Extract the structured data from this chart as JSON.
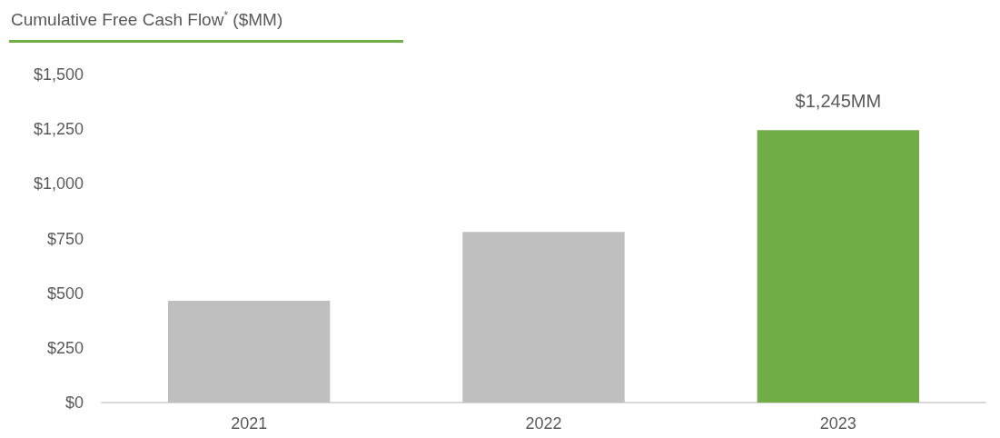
{
  "chart_data": {
    "type": "bar",
    "title": "Cumulative Free Cash Flow$^{*}$ ($MM)",
    "categories": [
      "2021",
      "2022",
      "2023"
    ],
    "values": [
      465,
      780,
      1245
    ],
    "colors": [
      "#bfbfbf",
      "#bfbfbf",
      "#70ad47"
    ],
    "value_labels": [
      null,
      null,
      "$1,245MM"
    ],
    "ylim": [
      0,
      1500
    ],
    "yticks": [
      {
        "value": 0,
        "label": "$0"
      },
      {
        "value": 250,
        "label": "$250"
      },
      {
        "value": 500,
        "label": "$500"
      },
      {
        "value": 750,
        "label": "$750"
      },
      {
        "value": 1000,
        "label": "$1,000"
      },
      {
        "value": 1250,
        "label": "$1,250"
      },
      {
        "value": 1500,
        "label": "$1,500"
      }
    ],
    "grid": false
  }
}
